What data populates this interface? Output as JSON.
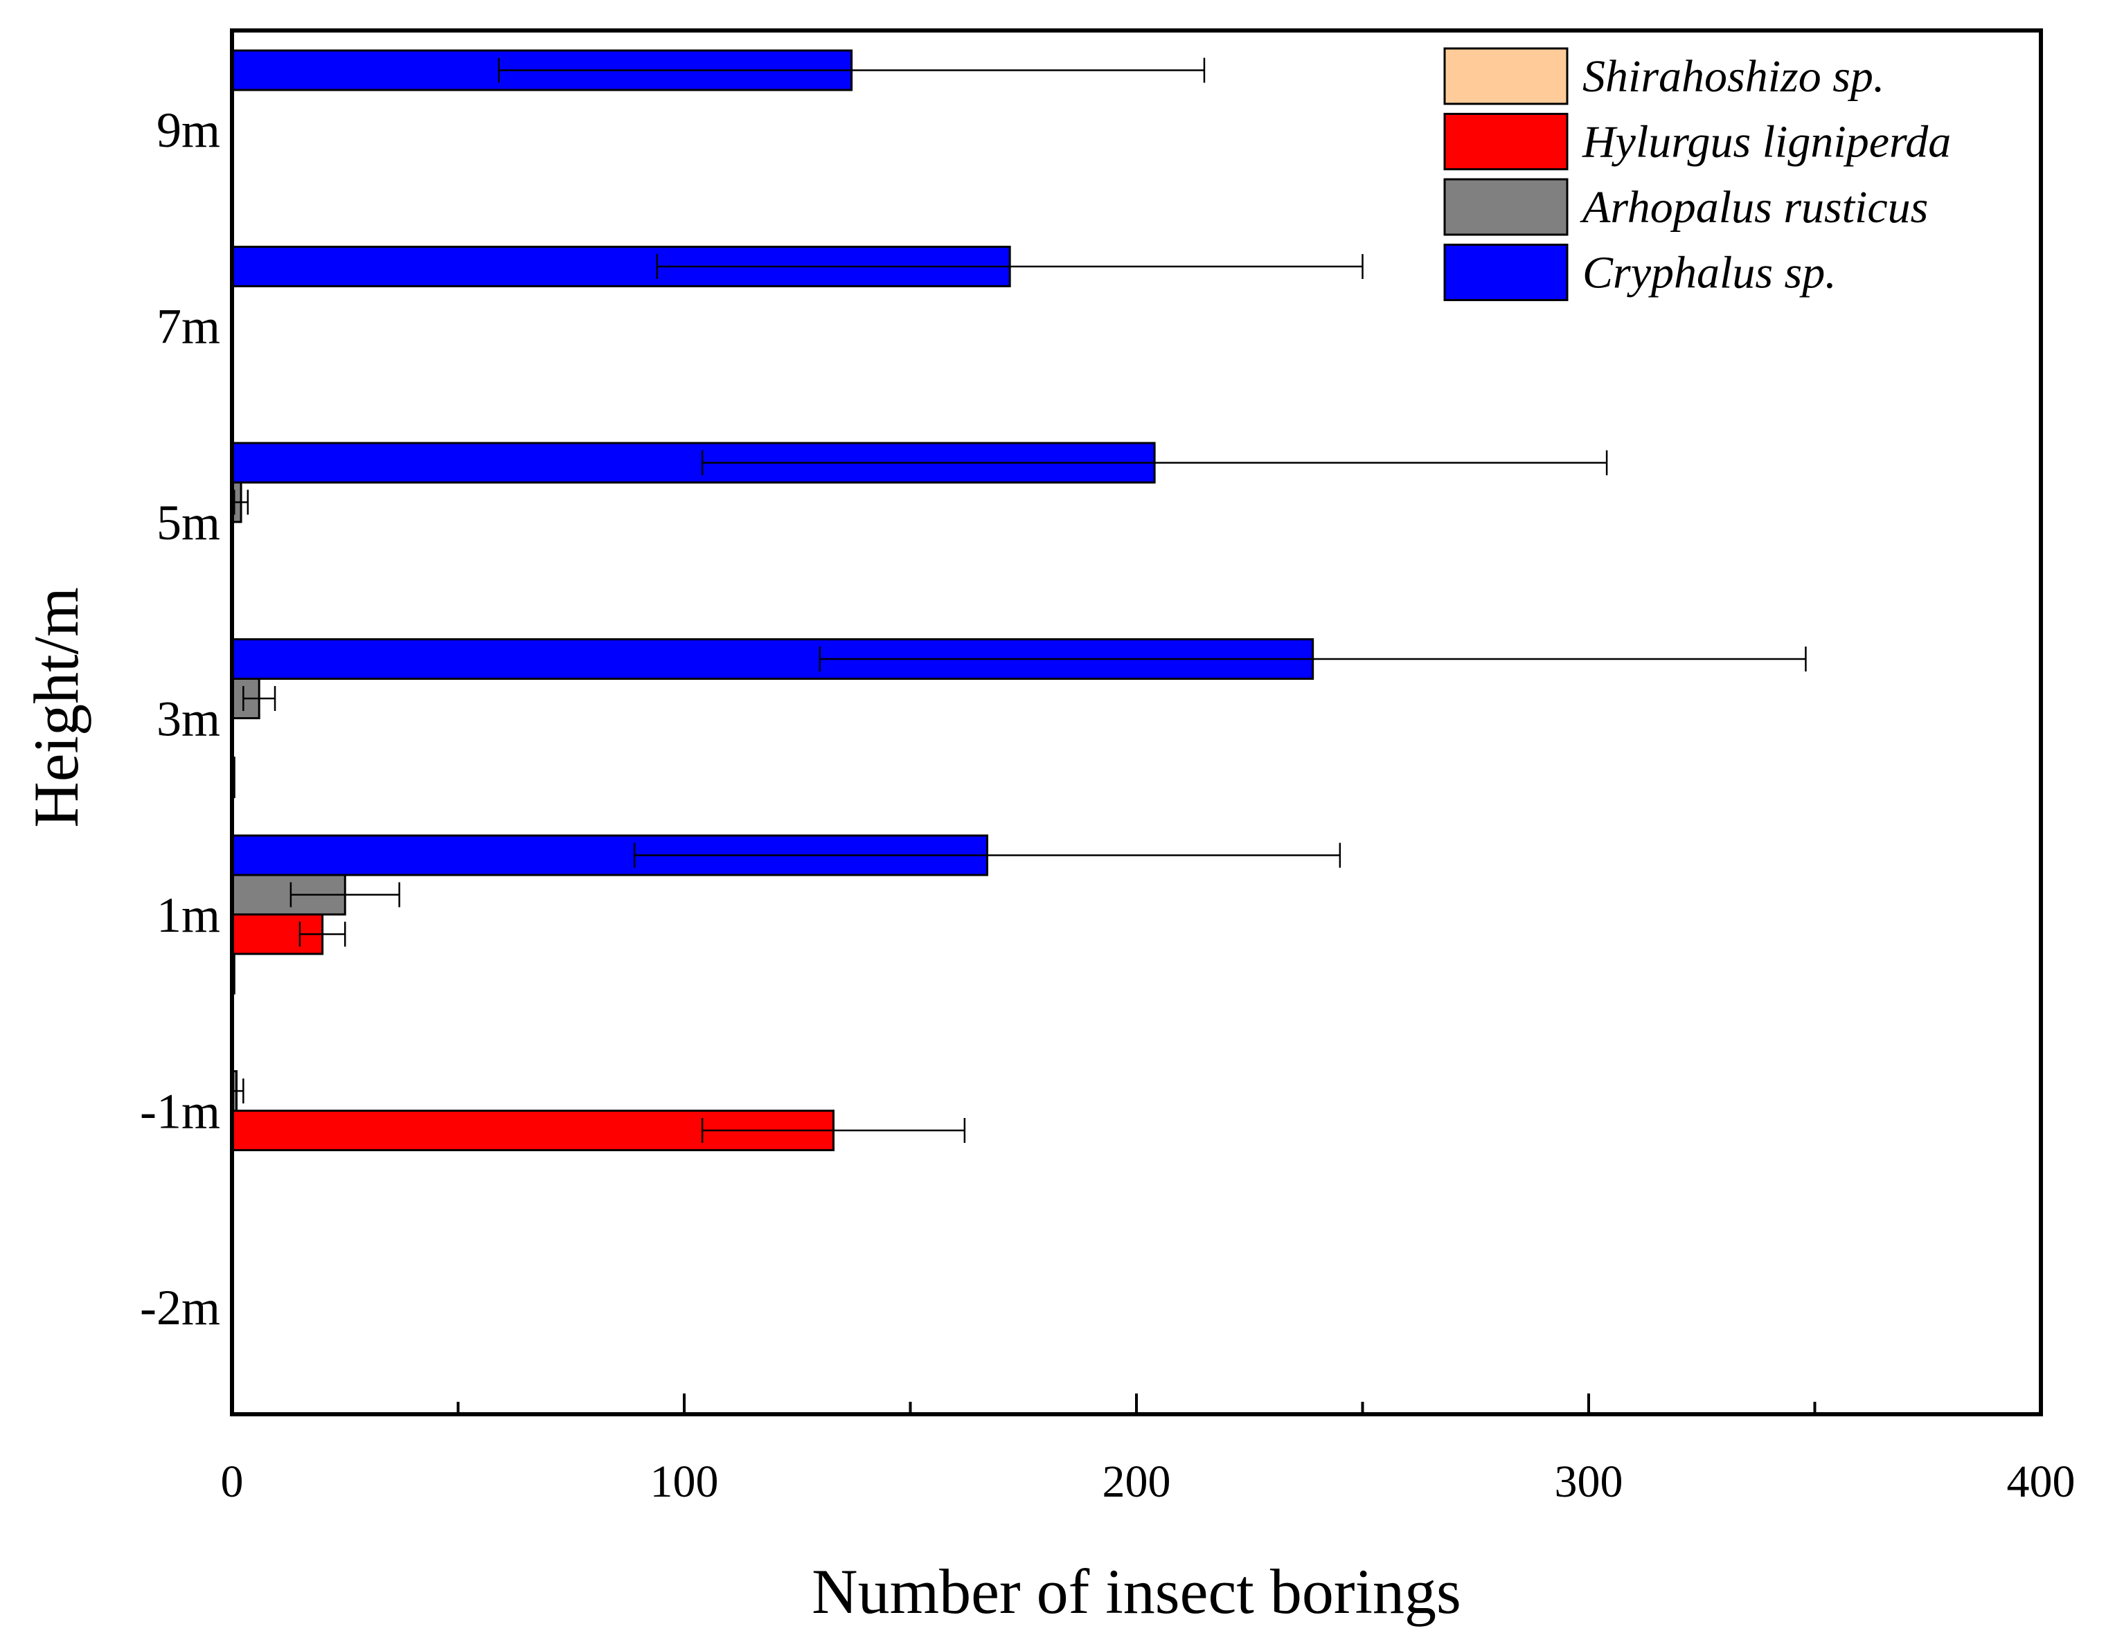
{
  "chart_data": {
    "type": "bar",
    "orientation": "horizontal",
    "title": "",
    "xlabel": "Number of insect borings",
    "ylabel": "Height/m",
    "xlim": [
      0,
      400
    ],
    "xticks": [
      0,
      100,
      200,
      300,
      400
    ],
    "categories": [
      "-2m",
      "-1m",
      "1m",
      "3m",
      "5m",
      "7m",
      "9m"
    ],
    "series": [
      {
        "name": "Shirahoshizo sp.",
        "color": "#FFCC99",
        "values": [
          0,
          0,
          0.5,
          0.5,
          0,
          0,
          0
        ],
        "errors": [
          0,
          0,
          0,
          0,
          0,
          0,
          0
        ]
      },
      {
        "name": "Hylurgus ligniperda",
        "color": "#FF0000",
        "values": [
          0,
          133,
          20,
          0,
          0,
          0,
          0
        ],
        "errors": [
          0,
          29,
          5,
          0,
          0,
          0,
          0
        ]
      },
      {
        "name": "Arhopalus rusticus",
        "color": "#808080",
        "values": [
          0,
          1,
          25,
          6,
          2,
          0,
          0
        ],
        "errors": [
          0,
          1.5,
          12,
          3.5,
          1.5,
          0,
          0
        ]
      },
      {
        "name": "Cryphalus sp.",
        "color": "#0000FF",
        "values": [
          0,
          0,
          167,
          239,
          204,
          172,
          137
        ],
        "errors": [
          0,
          0,
          78,
          109,
          100,
          78,
          78
        ]
      }
    ],
    "legend_position": "top-right",
    "grid": false
  }
}
